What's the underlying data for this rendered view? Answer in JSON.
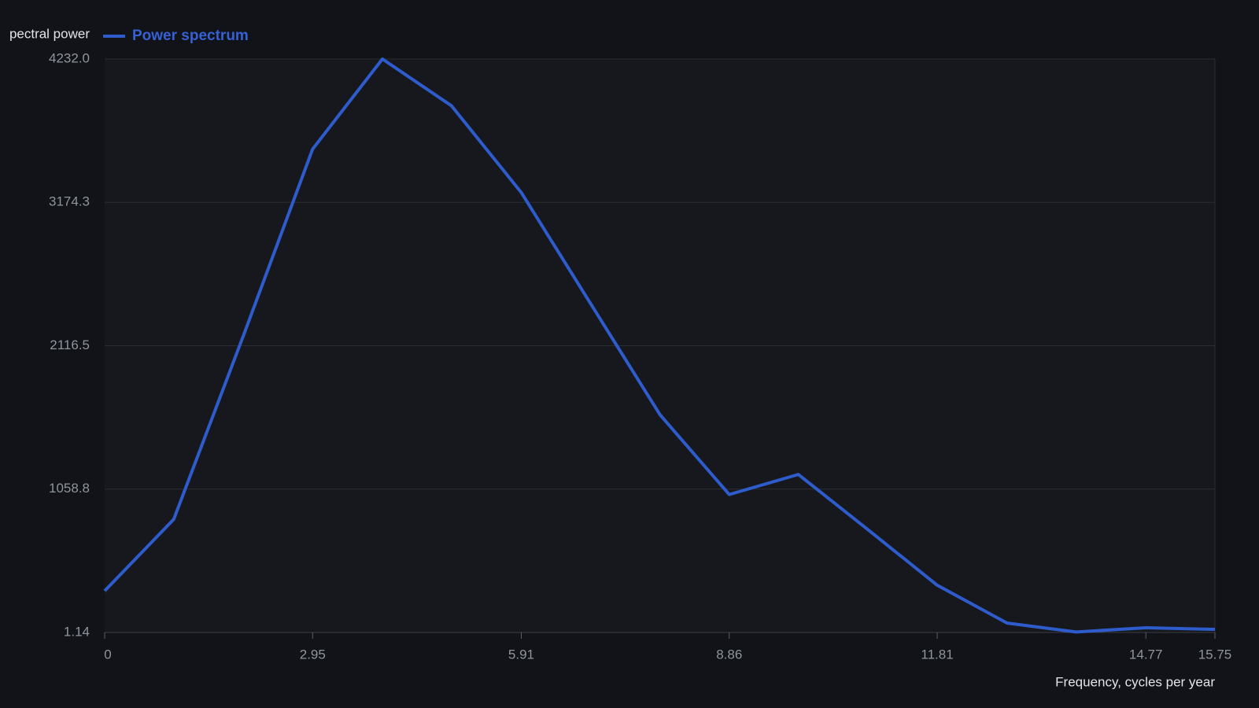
{
  "chart_data": {
    "type": "line",
    "ylabel": "pectral power",
    "xlabel": "Frequency, cycles per year",
    "x": [
      0,
      0.98,
      1.97,
      2.95,
      3.94,
      4.92,
      5.91,
      6.89,
      7.88,
      8.86,
      9.84,
      10.83,
      11.81,
      12.8,
      13.78,
      14.77,
      15.75
    ],
    "series": [
      {
        "name": "Power spectrum",
        "color": "#2f5ccc",
        "values": [
          308,
          836,
          2193,
          3567,
          4232,
          3887,
          3247,
          2430,
          1606,
          1019,
          1167,
          759,
          350,
          71,
          5,
          36,
          24
        ]
      }
    ],
    "xlim": [
      0,
      15.75
    ],
    "xticks": [
      0,
      2.95,
      5.91,
      8.86,
      11.81,
      14.77,
      15.75
    ],
    "ylim": [
      1.14,
      4232
    ],
    "yticks": [
      1.14,
      1058.8,
      2116.5,
      3174.3,
      {
        "value": 4232,
        "label": "4232.0"
      }
    ],
    "grid": true
  }
}
